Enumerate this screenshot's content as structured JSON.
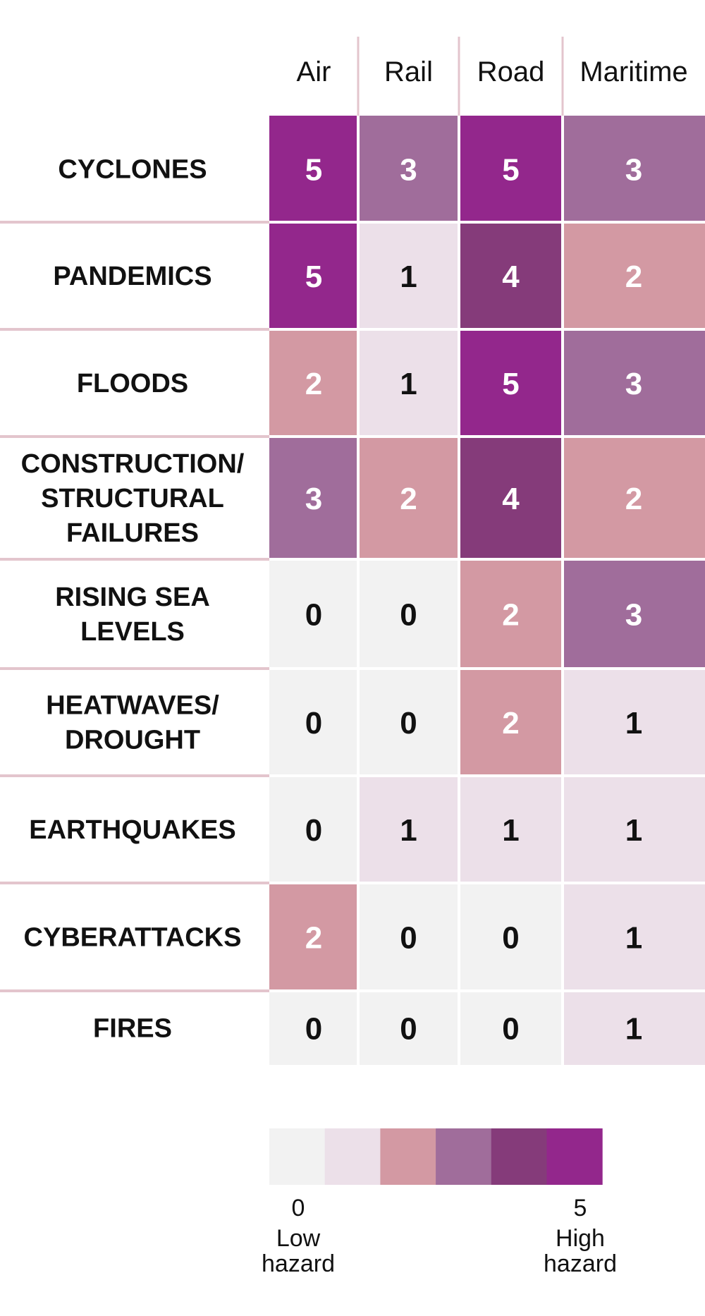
{
  "chart_data": {
    "type": "heatmap",
    "columns": [
      "Air",
      "Rail",
      "Road",
      "Maritime"
    ],
    "rows": [
      {
        "label": [
          "CYCLONES"
        ],
        "values": [
          5,
          3,
          5,
          3
        ]
      },
      {
        "label": [
          "PANDEMICS"
        ],
        "values": [
          5,
          1,
          4,
          2
        ]
      },
      {
        "label": [
          "FLOODS"
        ],
        "values": [
          2,
          1,
          5,
          3
        ]
      },
      {
        "label": [
          "CONSTRUCTION/",
          "STRUCTURAL",
          "FAILURES"
        ],
        "values": [
          3,
          2,
          4,
          2
        ]
      },
      {
        "label": [
          "RISING SEA",
          "LEVELS"
        ],
        "values": [
          0,
          0,
          2,
          3
        ]
      },
      {
        "label": [
          "HEATWAVES/",
          "DROUGHT"
        ],
        "values": [
          0,
          0,
          2,
          1
        ]
      },
      {
        "label": [
          "EARTHQUAKES"
        ],
        "values": [
          0,
          1,
          1,
          1
        ]
      },
      {
        "label": [
          "CYBERATTACKS"
        ],
        "values": [
          2,
          0,
          0,
          1
        ]
      },
      {
        "label": [
          "FIRES"
        ],
        "values": [
          0,
          0,
          0,
          1
        ]
      }
    ],
    "scale": {
      "min": 0,
      "max": 5,
      "colors": [
        "#f2f2f2",
        "#ece0e9",
        "#d399a3",
        "#a06d9b",
        "#853b7a",
        "#93278c"
      ],
      "text_colors": [
        "#111111",
        "#111111",
        "#ffffff",
        "#ffffff",
        "#ffffff",
        "#ffffff"
      ],
      "min_label": [
        "0",
        "Low",
        "hazard"
      ],
      "max_label": [
        "5",
        "High",
        "hazard"
      ]
    },
    "separator_color": "#e3c5cd"
  }
}
